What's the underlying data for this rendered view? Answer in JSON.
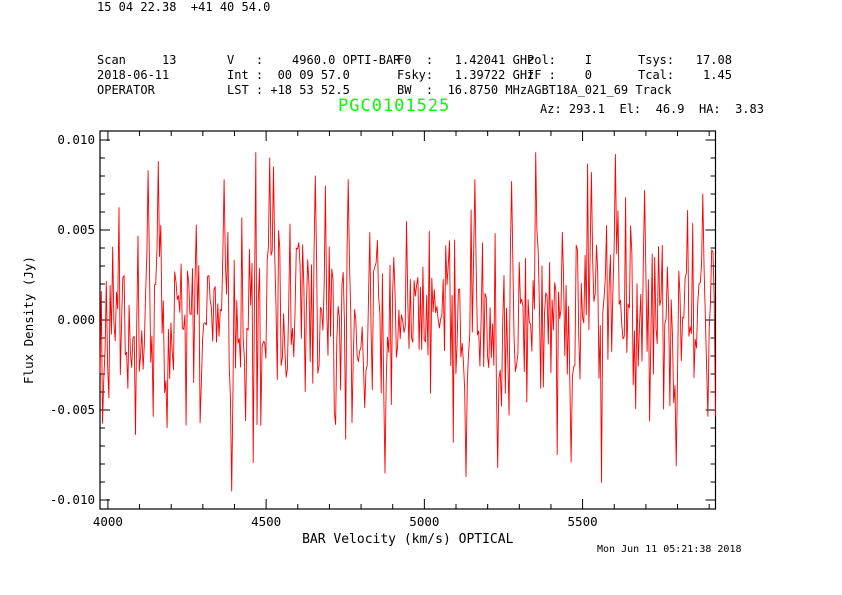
{
  "header": {
    "cols": [
      {
        "lines": [
          "Scan     13",
          "2018-06-11",
          "OPERATOR"
        ]
      },
      {
        "lines": [
          "V   :    4960.0 OPTI-BAR",
          "Int :  00 09 57.0",
          "LST : +18 53 52.5"
        ]
      },
      {
        "lines": [
          "F0  :   1.42041 GHz",
          "Fsky:   1.39722 GHz",
          "BW  :  16.8750 MHz"
        ]
      },
      {
        "lines": [
          "Pol:    I",
          "IF :    0",
          "AGBT18A_021_69 Track"
        ]
      },
      {
        "lines": [
          "Tsys:   17.08",
          "Tcal:    1.45",
          ""
        ]
      }
    ]
  },
  "source_row": {
    "ra_dec": "15 04 22.38  +41 40 54.0",
    "title": "PGC0101525",
    "title_color": "#00ff00",
    "azel": "Az: 293.1  El:  46.9  HA:  3.83"
  },
  "footer": {
    "timestamp": "Mon Jun 11 05:21:38 2018"
  },
  "chart_data": {
    "type": "line",
    "title": "PGC0101525",
    "xlabel": "BAR Velocity (km/s) OPTICAL",
    "ylabel": "Flux Density (Jy)",
    "xlim": [
      3975,
      5920
    ],
    "ylim": [
      -0.0105,
      0.0105
    ],
    "x_major_ticks": [
      4000,
      4500,
      5000,
      5500
    ],
    "x_major_labels": [
      "4000",
      "4500",
      "5000",
      "5500"
    ],
    "x_minor_step": 100,
    "y_major_ticks": [
      -0.01,
      -0.005,
      0,
      0.005,
      0.01
    ],
    "y_major_labels": [
      "-0.010",
      "-0.005",
      "0.000",
      "0.005",
      "0.010"
    ],
    "y_minor_step": 0.001,
    "grid": false,
    "line_color": "#ff0000",
    "axis_color": "#000000",
    "n_channels": 487,
    "noise_sigma_jy": 0.0026,
    "seed": 11,
    "spikes": [
      {
        "v": 4127,
        "jy": 0.0083
      },
      {
        "v": 4160,
        "jy": 0.0088
      },
      {
        "v": 4368,
        "jy": 0.0078
      },
      {
        "v": 4393,
        "jy": -0.0095
      },
      {
        "v": 4513,
        "jy": 0.009
      },
      {
        "v": 4524,
        "jy": 0.0085
      },
      {
        "v": 4655,
        "jy": 0.008
      },
      {
        "v": 4760,
        "jy": 0.0078
      },
      {
        "v": 4877,
        "jy": -0.0085
      },
      {
        "v": 5131,
        "jy": -0.0087
      },
      {
        "v": 5160,
        "jy": 0.0078
      },
      {
        "v": 5232,
        "jy": -0.0082
      },
      {
        "v": 5277,
        "jy": 0.0077
      },
      {
        "v": 5465,
        "jy": -0.0079
      },
      {
        "v": 5529,
        "jy": 0.0082
      },
      {
        "v": 5605,
        "jy": 0.0092
      },
      {
        "v": 5697,
        "jy": 0.0072
      },
      {
        "v": 5797,
        "jy": -0.0081
      },
      {
        "v": 5880,
        "jy": 0.007
      }
    ]
  }
}
